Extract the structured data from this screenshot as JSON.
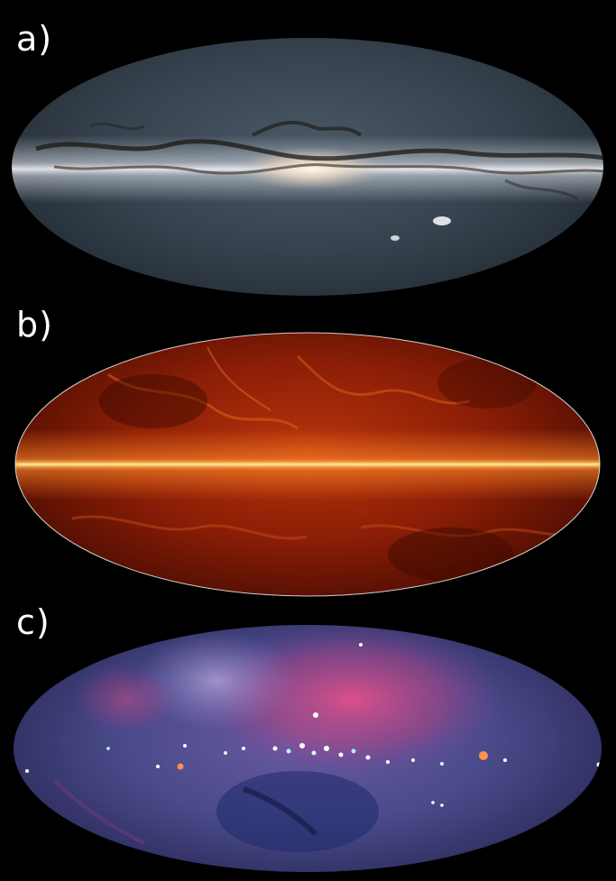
{
  "panels": [
    {
      "label": "a)"
    },
    {
      "label": "b)"
    },
    {
      "label": "c)"
    }
  ],
  "colors": {
    "background": "#000000",
    "label": "#ffffff",
    "optical_sky": "#33404c",
    "optical_band": "#f3eadf",
    "infrared_sky": "#8a1e06",
    "infrared_band": "#ffb040",
    "xray_sky": "#4a4a8a",
    "xray_hot": "#e0457a"
  }
}
